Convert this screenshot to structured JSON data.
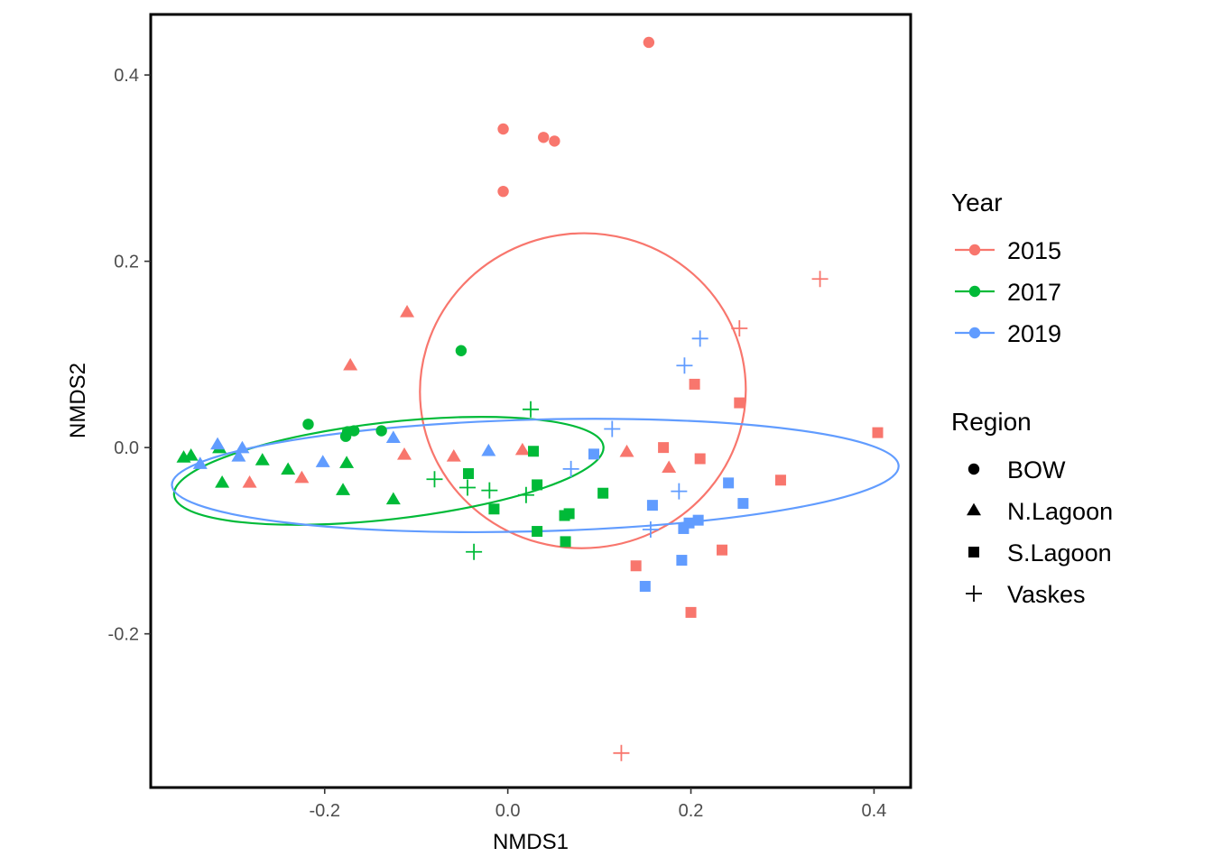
{
  "chart_data": {
    "type": "scatter",
    "xlabel": "NMDS1",
    "ylabel": "NMDS2",
    "xlim": [
      -0.39,
      0.44
    ],
    "ylim": [
      -0.365,
      0.465
    ],
    "xticks": [
      -0.2,
      0.0,
      0.2,
      0.4
    ],
    "yticks": [
      -0.2,
      0.0,
      0.2,
      0.4
    ],
    "xtick_labels": [
      "-0.2",
      "0.0",
      "0.2",
      "0.4"
    ],
    "ytick_labels": [
      "-0.2",
      "0.0",
      "0.2",
      "0.4"
    ],
    "grid": false,
    "legend_placement": "right",
    "color_legend": {
      "title": "Year",
      "entries": [
        {
          "label": "2015",
          "color": "#F8766D"
        },
        {
          "label": "2017",
          "color": "#00BA38"
        },
        {
          "label": "2019",
          "color": "#619CFF"
        }
      ]
    },
    "shape_legend": {
      "title": "Region",
      "entries": [
        {
          "label": "BOW",
          "shape": "circle"
        },
        {
          "label": "N.Lagoon",
          "shape": "triangle"
        },
        {
          "label": "S.Lagoon",
          "shape": "square"
        },
        {
          "label": "Vaskes",
          "shape": "plus"
        }
      ]
    },
    "ellipses": [
      {
        "year": "2015",
        "cx": 0.082,
        "cy": 0.061,
        "rx": 0.178,
        "ry": 0.169,
        "angle_deg": -6
      },
      {
        "year": "2017",
        "cx": -0.13,
        "cy": -0.025,
        "rx": 0.236,
        "ry": 0.052,
        "angle_deg": -6.5
      },
      {
        "year": "2019",
        "cx": 0.03,
        "cy": -0.03,
        "rx": 0.397,
        "ry": 0.06,
        "angle_deg": -1.5
      }
    ],
    "points": [
      {
        "year": "2015",
        "region": "BOW",
        "x": 0.154,
        "y": 0.435
      },
      {
        "year": "2015",
        "region": "BOW",
        "x": -0.005,
        "y": 0.342
      },
      {
        "year": "2015",
        "region": "BOW",
        "x": 0.039,
        "y": 0.333
      },
      {
        "year": "2015",
        "region": "BOW",
        "x": 0.051,
        "y": 0.329
      },
      {
        "year": "2015",
        "region": "BOW",
        "x": -0.005,
        "y": 0.275
      },
      {
        "year": "2015",
        "region": "N.Lagoon",
        "x": -0.11,
        "y": 0.145
      },
      {
        "year": "2015",
        "region": "N.Lagoon",
        "x": -0.172,
        "y": 0.088
      },
      {
        "year": "2015",
        "region": "N.Lagoon",
        "x": -0.113,
        "y": -0.008
      },
      {
        "year": "2015",
        "region": "N.Lagoon",
        "x": -0.059,
        "y": -0.01
      },
      {
        "year": "2015",
        "region": "N.Lagoon",
        "x": -0.225,
        "y": -0.033
      },
      {
        "year": "2015",
        "region": "N.Lagoon",
        "x": -0.282,
        "y": -0.038
      },
      {
        "year": "2015",
        "region": "N.Lagoon",
        "x": 0.016,
        "y": -0.003
      },
      {
        "year": "2015",
        "region": "N.Lagoon",
        "x": 0.13,
        "y": -0.005
      },
      {
        "year": "2015",
        "region": "N.Lagoon",
        "x": 0.176,
        "y": -0.022
      },
      {
        "year": "2015",
        "region": "S.Lagoon",
        "x": 0.204,
        "y": 0.068
      },
      {
        "year": "2015",
        "region": "S.Lagoon",
        "x": 0.253,
        "y": 0.048
      },
      {
        "year": "2015",
        "region": "S.Lagoon",
        "x": 0.404,
        "y": 0.016
      },
      {
        "year": "2015",
        "region": "S.Lagoon",
        "x": 0.17,
        "y": 0.0
      },
      {
        "year": "2015",
        "region": "S.Lagoon",
        "x": 0.21,
        "y": -0.012
      },
      {
        "year": "2015",
        "region": "S.Lagoon",
        "x": 0.298,
        "y": -0.035
      },
      {
        "year": "2015",
        "region": "S.Lagoon",
        "x": 0.234,
        "y": -0.11
      },
      {
        "year": "2015",
        "region": "S.Lagoon",
        "x": 0.14,
        "y": -0.127
      },
      {
        "year": "2015",
        "region": "S.Lagoon",
        "x": 0.2,
        "y": -0.177
      },
      {
        "year": "2015",
        "region": "Vaskes",
        "x": 0.341,
        "y": 0.181
      },
      {
        "year": "2015",
        "region": "Vaskes",
        "x": 0.253,
        "y": 0.128
      },
      {
        "year": "2015",
        "region": "Vaskes",
        "x": 0.124,
        "y": -0.328
      },
      {
        "year": "2017",
        "region": "BOW",
        "x": -0.051,
        "y": 0.104
      },
      {
        "year": "2017",
        "region": "BOW",
        "x": -0.218,
        "y": 0.025
      },
      {
        "year": "2017",
        "region": "BOW",
        "x": -0.175,
        "y": 0.017
      },
      {
        "year": "2017",
        "region": "BOW",
        "x": -0.168,
        "y": 0.018
      },
      {
        "year": "2017",
        "region": "BOW",
        "x": -0.138,
        "y": 0.018
      },
      {
        "year": "2017",
        "region": "BOW",
        "x": -0.177,
        "y": 0.012
      },
      {
        "year": "2017",
        "region": "N.Lagoon",
        "x": -0.354,
        "y": -0.011
      },
      {
        "year": "2017",
        "region": "N.Lagoon",
        "x": -0.346,
        "y": -0.009
      },
      {
        "year": "2017",
        "region": "N.Lagoon",
        "x": -0.315,
        "y": -0.001
      },
      {
        "year": "2017",
        "region": "N.Lagoon",
        "x": -0.268,
        "y": -0.014
      },
      {
        "year": "2017",
        "region": "N.Lagoon",
        "x": -0.24,
        "y": -0.024
      },
      {
        "year": "2017",
        "region": "N.Lagoon",
        "x": -0.312,
        "y": -0.038
      },
      {
        "year": "2017",
        "region": "N.Lagoon",
        "x": -0.176,
        "y": -0.017
      },
      {
        "year": "2017",
        "region": "N.Lagoon",
        "x": -0.18,
        "y": -0.046
      },
      {
        "year": "2017",
        "region": "N.Lagoon",
        "x": -0.125,
        "y": -0.056
      },
      {
        "year": "2017",
        "region": "S.Lagoon",
        "x": 0.028,
        "y": -0.004
      },
      {
        "year": "2017",
        "region": "S.Lagoon",
        "x": -0.043,
        "y": -0.028
      },
      {
        "year": "2017",
        "region": "S.Lagoon",
        "x": 0.032,
        "y": -0.04
      },
      {
        "year": "2017",
        "region": "S.Lagoon",
        "x": 0.104,
        "y": -0.049
      },
      {
        "year": "2017",
        "region": "S.Lagoon",
        "x": -0.015,
        "y": -0.066
      },
      {
        "year": "2017",
        "region": "S.Lagoon",
        "x": 0.067,
        "y": -0.071
      },
      {
        "year": "2017",
        "region": "S.Lagoon",
        "x": 0.062,
        "y": -0.073
      },
      {
        "year": "2017",
        "region": "S.Lagoon",
        "x": 0.032,
        "y": -0.09
      },
      {
        "year": "2017",
        "region": "S.Lagoon",
        "x": 0.063,
        "y": -0.101
      },
      {
        "year": "2017",
        "region": "Vaskes",
        "x": 0.025,
        "y": 0.041
      },
      {
        "year": "2017",
        "region": "Vaskes",
        "x": -0.08,
        "y": -0.034
      },
      {
        "year": "2017",
        "region": "Vaskes",
        "x": -0.044,
        "y": -0.043
      },
      {
        "year": "2017",
        "region": "Vaskes",
        "x": -0.02,
        "y": -0.046
      },
      {
        "year": "2017",
        "region": "Vaskes",
        "x": 0.02,
        "y": -0.051
      },
      {
        "year": "2017",
        "region": "Vaskes",
        "x": -0.037,
        "y": -0.112
      },
      {
        "year": "2019",
        "region": "N.Lagoon",
        "x": -0.317,
        "y": 0.003
      },
      {
        "year": "2019",
        "region": "N.Lagoon",
        "x": -0.29,
        "y": -0.001
      },
      {
        "year": "2019",
        "region": "N.Lagoon",
        "x": -0.294,
        "y": -0.01
      },
      {
        "year": "2019",
        "region": "N.Lagoon",
        "x": -0.336,
        "y": -0.018
      },
      {
        "year": "2019",
        "region": "N.Lagoon",
        "x": -0.202,
        "y": -0.016
      },
      {
        "year": "2019",
        "region": "N.Lagoon",
        "x": -0.125,
        "y": 0.01
      },
      {
        "year": "2019",
        "region": "N.Lagoon",
        "x": -0.021,
        "y": -0.004
      },
      {
        "year": "2019",
        "region": "S.Lagoon",
        "x": 0.094,
        "y": -0.007
      },
      {
        "year": "2019",
        "region": "S.Lagoon",
        "x": 0.241,
        "y": -0.038
      },
      {
        "year": "2019",
        "region": "S.Lagoon",
        "x": 0.257,
        "y": -0.06
      },
      {
        "year": "2019",
        "region": "S.Lagoon",
        "x": 0.158,
        "y": -0.062
      },
      {
        "year": "2019",
        "region": "S.Lagoon",
        "x": 0.208,
        "y": -0.078
      },
      {
        "year": "2019",
        "region": "S.Lagoon",
        "x": 0.198,
        "y": -0.081
      },
      {
        "year": "2019",
        "region": "S.Lagoon",
        "x": 0.192,
        "y": -0.087
      },
      {
        "year": "2019",
        "region": "S.Lagoon",
        "x": 0.19,
        "y": -0.121
      },
      {
        "year": "2019",
        "region": "S.Lagoon",
        "x": 0.15,
        "y": -0.149
      },
      {
        "year": "2019",
        "region": "Vaskes",
        "x": 0.21,
        "y": 0.117
      },
      {
        "year": "2019",
        "region": "Vaskes",
        "x": 0.193,
        "y": 0.088
      },
      {
        "year": "2019",
        "region": "Vaskes",
        "x": 0.114,
        "y": 0.02
      },
      {
        "year": "2019",
        "region": "Vaskes",
        "x": 0.069,
        "y": -0.023
      },
      {
        "year": "2019",
        "region": "Vaskes",
        "x": 0.187,
        "y": -0.047
      },
      {
        "year": "2019",
        "region": "Vaskes",
        "x": 0.156,
        "y": -0.088
      }
    ]
  }
}
